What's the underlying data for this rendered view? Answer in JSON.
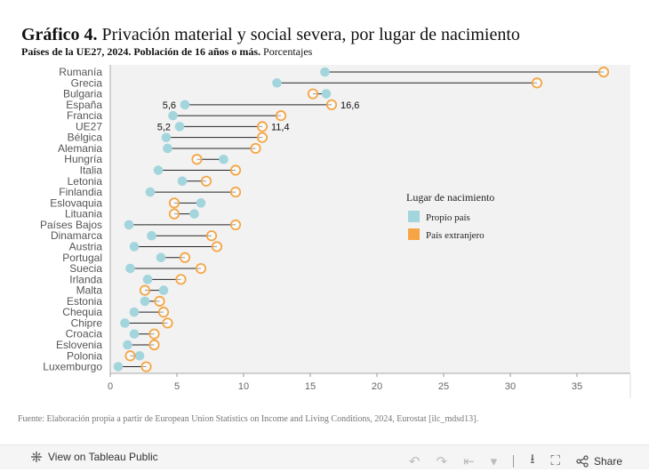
{
  "header": {
    "title_bold": "Gráfico 4.",
    "title_rest": " Privación material y social severa, por lugar de nacimiento",
    "subtitle_bold": "Países de la UE27, 2024. Población de 16 años o más.",
    "subtitle_rest": " Porcentajes"
  },
  "source": "Fuente: Elaboración propia a partir de European Union Statistics on Income and Living Conditions, 2024, Eurostat [ilc_mdsd13].",
  "toolbar": {
    "view_label": "View on Tableau Public",
    "share_label": "Share"
  },
  "chart_data": {
    "type": "dumbbell",
    "xlim": [
      0,
      39
    ],
    "xticks": [
      0,
      5,
      10,
      15,
      20,
      25,
      30,
      35
    ],
    "grid": false,
    "legend": {
      "title": "Lugar de nacimiento",
      "position": "center-right",
      "entries": [
        {
          "label": "Propio país",
          "color": "#a3d5dd",
          "marker": "filled-circle"
        },
        {
          "label": "País extranjero",
          "color": "#f5a544",
          "marker": "open-circle"
        }
      ]
    },
    "colors": {
      "native": "#a3d5dd",
      "foreign": "#f5a544",
      "connector": "#222222",
      "plot_bg": "#f2f2f2"
    },
    "categories": [
      "Rumanía",
      "Grecia",
      "Bulgaria",
      "España",
      "Francia",
      "UE27",
      "Bélgica",
      "Alemania",
      "Hungría",
      "Italia",
      "Letonia",
      "Finlandia",
      "Eslovaquia",
      "Lituania",
      "Países Bajos",
      "Dinamarca",
      "Austria",
      "Portugal",
      "Suecia",
      "Irlanda",
      "Malta",
      "Estonia",
      "Chequia",
      "Chipre",
      "Croacia",
      "Eslovenia",
      "Polonia",
      "Luxemburgo"
    ],
    "series": [
      {
        "name": "Propio país",
        "values": [
          16.1,
          12.5,
          16.2,
          5.6,
          4.7,
          5.2,
          4.2,
          4.3,
          8.5,
          3.6,
          5.4,
          3.0,
          6.8,
          6.3,
          1.4,
          3.1,
          1.8,
          3.8,
          1.5,
          2.8,
          4.0,
          2.6,
          1.8,
          1.1,
          1.8,
          1.3,
          2.2,
          0.6
        ]
      },
      {
        "name": "País extranjero",
        "values": [
          37.0,
          32.0,
          15.2,
          16.6,
          12.8,
          11.4,
          11.4,
          10.9,
          6.5,
          9.4,
          7.2,
          9.4,
          4.8,
          4.8,
          9.4,
          7.6,
          8.0,
          5.6,
          6.8,
          5.3,
          2.6,
          3.7,
          4.0,
          4.3,
          3.3,
          3.3,
          1.5,
          2.7
        ]
      }
    ],
    "annotations": [
      {
        "category": "España",
        "series": "Propio país",
        "text": "5,6"
      },
      {
        "category": "España",
        "series": "País extranjero",
        "text": "16,6"
      },
      {
        "category": "UE27",
        "series": "Propio país",
        "text": "5,2"
      },
      {
        "category": "UE27",
        "series": "País extranjero",
        "text": "11,4"
      }
    ]
  }
}
